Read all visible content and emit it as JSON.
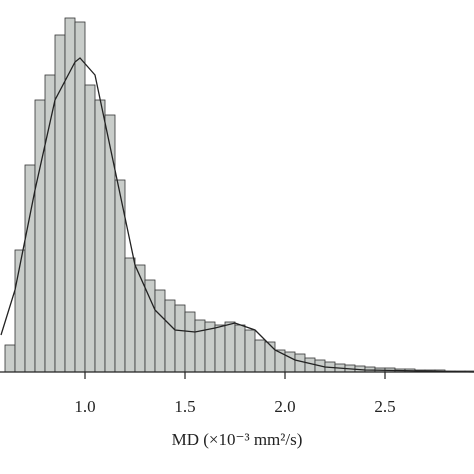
{
  "chart_data": {
    "type": "histogram",
    "x_label": "MD (×10⁻³ mm²/s)",
    "bins": [
      0.6,
      0.65,
      0.7,
      0.75,
      0.8,
      0.85,
      0.9,
      0.95,
      1.0,
      1.05,
      1.1,
      1.15,
      1.2,
      1.25,
      1.3,
      1.35,
      1.4,
      1.45,
      1.5,
      1.55,
      1.6,
      1.65,
      1.7,
      1.75,
      1.8,
      1.85,
      1.9,
      1.95,
      2.0,
      2.05,
      2.1,
      2.15,
      2.2,
      2.25,
      2.3,
      2.35,
      2.4,
      2.45,
      2.5,
      2.55,
      2.6,
      2.65,
      2.7,
      2.75,
      2.8,
      2.85,
      2.9,
      2.95
    ],
    "values": [
      27,
      122,
      207,
      272,
      297,
      337,
      354,
      350,
      287,
      272,
      257,
      192,
      114,
      107,
      92,
      82,
      72,
      67,
      60,
      52,
      50,
      47,
      50,
      47,
      42,
      32,
      30,
      22,
      20,
      18,
      14,
      12,
      10,
      8,
      7,
      6,
      5,
      4,
      4,
      3,
      3,
      2,
      2,
      2,
      1,
      1,
      1
    ],
    "color": "#c9cdca",
    "fit": {
      "color": "#222222",
      "x": [
        0.58,
        0.65,
        0.75,
        0.85,
        0.95,
        0.975,
        1.05,
        1.15,
        1.25,
        1.35,
        1.45,
        1.55,
        1.65,
        1.75,
        1.85,
        1.95,
        2.05,
        2.2,
        2.4,
        2.7,
        2.945
      ],
      "values": [
        37,
        82,
        182,
        272,
        310,
        314,
        297,
        202,
        107,
        62,
        42,
        40,
        44,
        49,
        42,
        22,
        12,
        5,
        2,
        1,
        0
      ]
    },
    "xlim": [
      0.575,
      2.945
    ],
    "ylim": [
      0,
      354
    ],
    "xticks": [
      {
        "value": 1,
        "label": "1.0"
      },
      1.5,
      {
        "value": 2,
        "label": "2.0"
      },
      2.5
    ]
  }
}
